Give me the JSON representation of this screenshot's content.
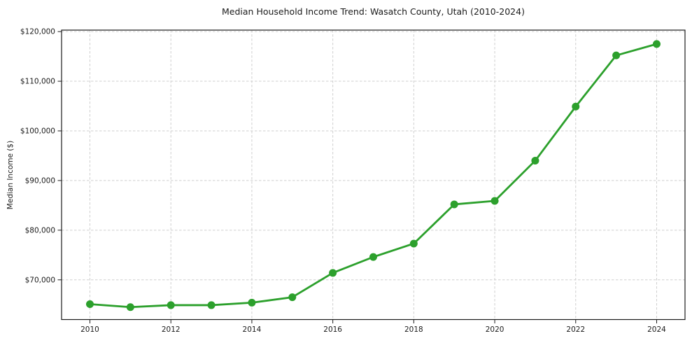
{
  "chart_data": {
    "type": "line",
    "title": "Median Household Income Trend: Wasatch County, Utah (2010-2024)",
    "xlabel": "",
    "ylabel": "Median Income ($)",
    "x": [
      2010,
      2011,
      2012,
      2013,
      2014,
      2015,
      2016,
      2017,
      2018,
      2019,
      2020,
      2021,
      2022,
      2023,
      2024
    ],
    "y": [
      65100,
      64500,
      64900,
      64900,
      65400,
      66500,
      71400,
      74600,
      77300,
      85200,
      85900,
      94000,
      104900,
      115200,
      117500
    ],
    "xticks": [
      2010,
      2012,
      2014,
      2016,
      2018,
      2020,
      2022,
      2024
    ],
    "xtick_labels": [
      "2010",
      "2012",
      "2014",
      "2016",
      "2018",
      "2020",
      "2022",
      "2024"
    ],
    "yticks": [
      70000,
      80000,
      90000,
      100000,
      110000,
      120000
    ],
    "ytick_labels": [
      "$70,000",
      "$80,000",
      "$90,000",
      "$100,000",
      "$110,000",
      "$120,000"
    ],
    "xlim": [
      2009.3,
      2024.7
    ],
    "ylim": [
      62000,
      120300
    ],
    "grid": true,
    "grid_style": "dashed",
    "legend": false,
    "line_color": "#2ca02c",
    "marker_color": "#2ca02c",
    "grid_color": "#cfcfcf",
    "axis_color": "#1a1a1a",
    "background": "#ffffff"
  }
}
